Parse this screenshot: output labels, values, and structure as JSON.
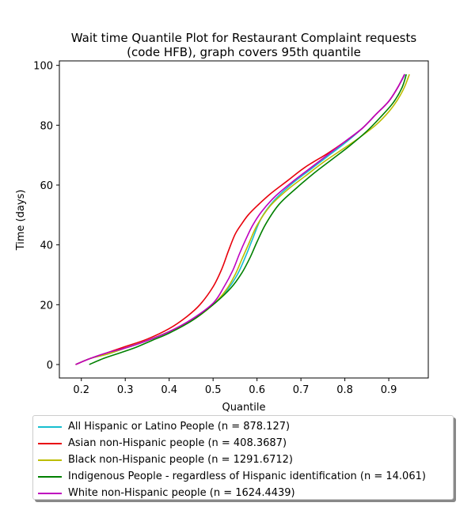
{
  "chart_data": {
    "type": "line",
    "title": "Wait time Quantile Plot for Restaurant Complaint  requests\n(code HFB), graph covers 95th quantile",
    "xlabel": "Quantile",
    "ylabel": "Time (days)",
    "xlim": [
      0.15,
      0.99
    ],
    "ylim": [
      -4.5,
      101.5
    ],
    "xticks": [
      0.2,
      0.3,
      0.4,
      0.5,
      0.6,
      0.7,
      0.8,
      0.9
    ],
    "yticks": [
      0,
      20,
      40,
      60,
      80,
      100
    ],
    "grid": false,
    "legend_position": "bottom",
    "series": [
      {
        "name": "All Hispanic or Latino People (n = 878.127)",
        "color": "#17becf",
        "x": [
          0.187,
          0.22,
          0.26,
          0.3,
          0.35,
          0.4,
          0.45,
          0.5,
          0.53,
          0.555,
          0.575,
          0.59,
          0.61,
          0.64,
          0.68,
          0.72,
          0.76,
          0.8,
          0.84,
          0.87,
          0.9,
          0.92,
          0.937
        ],
        "y": [
          0,
          2,
          3.5,
          5.5,
          8,
          11,
          14.5,
          20,
          24.5,
          30,
          36.5,
          42,
          49,
          55,
          60.5,
          65,
          69.5,
          74,
          79,
          83.5,
          88,
          92.5,
          97
        ]
      },
      {
        "name": "Asian non-Hispanic people (n = 408.3687)",
        "color": "#e8000b",
        "x": [
          0.187,
          0.22,
          0.26,
          0.3,
          0.35,
          0.4,
          0.44,
          0.47,
          0.5,
          0.52,
          0.535,
          0.55,
          0.565,
          0.58,
          0.6,
          0.63,
          0.67,
          0.71,
          0.76,
          0.8,
          0.84,
          0.87,
          0.9,
          0.92,
          0.936
        ],
        "y": [
          0,
          2,
          4,
          6,
          8.5,
          12,
          16,
          20,
          26,
          32,
          38,
          43.5,
          47,
          50,
          53,
          57,
          61.5,
          66,
          70.5,
          74.5,
          79,
          83.5,
          88,
          92.5,
          97
        ]
      },
      {
        "name": "Black non-Hispanic people (n = 1291.6712)",
        "color": "#bcbd00",
        "x": [
          0.187,
          0.22,
          0.26,
          0.3,
          0.35,
          0.4,
          0.45,
          0.5,
          0.53,
          0.55,
          0.565,
          0.58,
          0.6,
          0.63,
          0.67,
          0.71,
          0.75,
          0.79,
          0.83,
          0.87,
          0.9,
          0.92,
          0.935,
          0.947
        ],
        "y": [
          0,
          2,
          3.5,
          5.5,
          8,
          11,
          14.5,
          20,
          25,
          30,
          35,
          40,
          46.5,
          53,
          58.5,
          63,
          67.5,
          71.5,
          75.5,
          80,
          84.5,
          88.5,
          92.5,
          97
        ]
      },
      {
        "name": "Indigenous People - regardless of Hispanic identification (n = 14.061)",
        "color": "#008000",
        "x": [
          0.218,
          0.25,
          0.28,
          0.32,
          0.36,
          0.4,
          0.45,
          0.5,
          0.54,
          0.565,
          0.585,
          0.6,
          0.62,
          0.65,
          0.69,
          0.73,
          0.77,
          0.81,
          0.85,
          0.88,
          0.91,
          0.93,
          0.94
        ],
        "y": [
          0,
          2,
          3.5,
          5.5,
          8,
          10.5,
          14.5,
          20,
          25.5,
          30.5,
          36,
          41,
          47,
          53.5,
          59,
          64,
          68.5,
          73,
          78,
          82.5,
          87.5,
          92.5,
          97
        ]
      },
      {
        "name": "White non-Hispanic people (n = 1624.4439)",
        "color": "#bf00bf",
        "x": [
          0.187,
          0.22,
          0.26,
          0.3,
          0.35,
          0.4,
          0.45,
          0.5,
          0.525,
          0.545,
          0.56,
          0.575,
          0.59,
          0.61,
          0.64,
          0.68,
          0.72,
          0.76,
          0.8,
          0.84,
          0.87,
          0.9,
          0.92,
          0.936
        ],
        "y": [
          0,
          2,
          4,
          5.5,
          8,
          11,
          15,
          20.5,
          26,
          31.5,
          37,
          42,
          46.5,
          51,
          56,
          61,
          65.5,
          70,
          74.5,
          79,
          83.5,
          88,
          92.5,
          97
        ]
      }
    ]
  }
}
